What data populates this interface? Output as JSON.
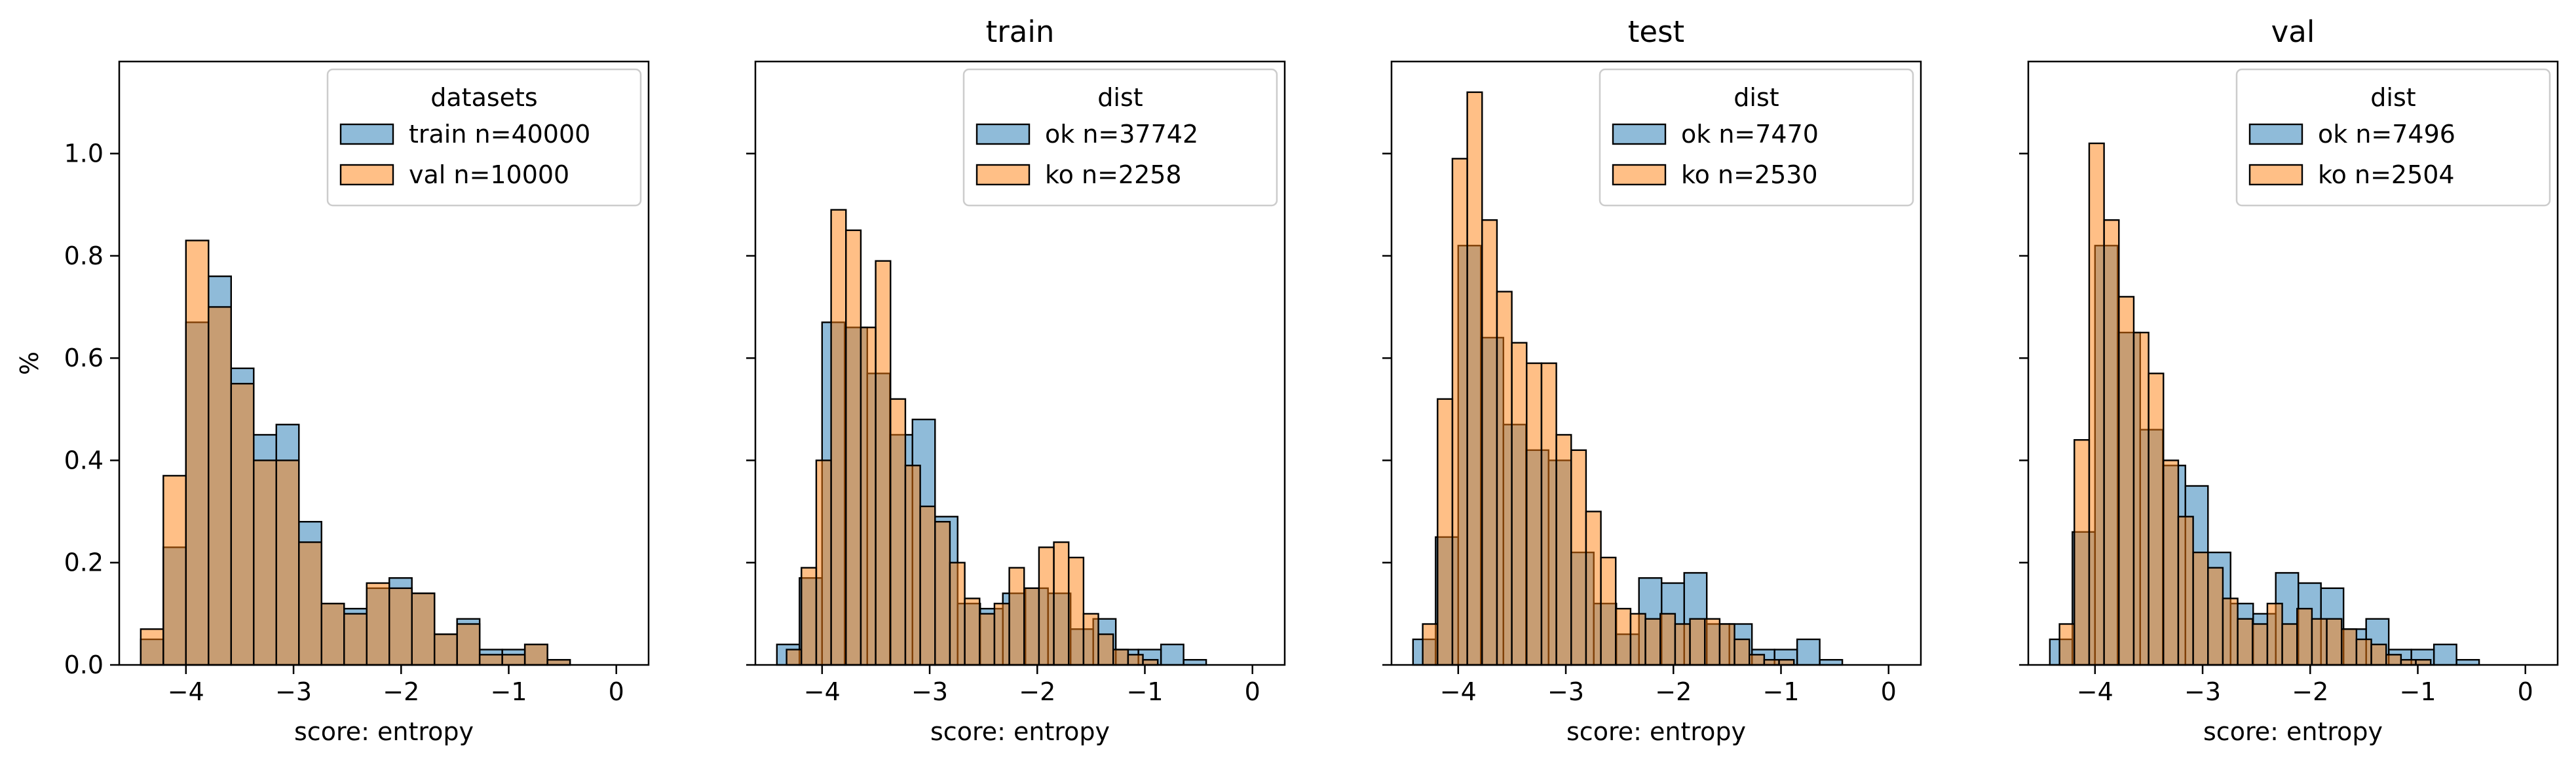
{
  "figure": {
    "shared_ylabel": "%",
    "xlabel": "score: entropy",
    "colors": {
      "blue": "#1f77b4",
      "orange": "#ff7f0e",
      "edge": "#000000"
    }
  },
  "chart_data": [
    {
      "type": "bar",
      "title": "",
      "xlabel": "score: entropy",
      "ylabel": "%",
      "xlim": [
        -4.62,
        0.3
      ],
      "ylim": [
        0,
        1.18
      ],
      "xticks": [
        -4,
        -3,
        -2,
        -1,
        0
      ],
      "yticks": [
        0.0,
        0.2,
        0.4,
        0.6,
        0.8,
        1.0
      ],
      "xtick_labels": [
        "−4",
        "−3",
        "−2",
        "−1",
        "0"
      ],
      "ytick_labels": [
        "0.0",
        "0.2",
        "0.4",
        "0.6",
        "0.8",
        "1.0"
      ],
      "grid": false,
      "legend": {
        "title": "datasets",
        "location": "upper right"
      },
      "series": [
        {
          "name": "train n=40000",
          "color": "#1f77b4",
          "bin_start": -4.42,
          "bin_width": 0.21,
          "values": [
            0.05,
            0.23,
            0.67,
            0.76,
            0.58,
            0.45,
            0.47,
            0.28,
            0.12,
            0.11,
            0.15,
            0.17,
            0.14,
            0.06,
            0.09,
            0.03,
            0.03,
            0.04,
            0.01
          ]
        },
        {
          "name": "val n=10000",
          "color": "#ff7f0e",
          "bin_start": -4.42,
          "bin_width": 0.21,
          "values": [
            0.07,
            0.37,
            0.83,
            0.7,
            0.55,
            0.4,
            0.4,
            0.24,
            0.12,
            0.1,
            0.16,
            0.15,
            0.14,
            0.06,
            0.08,
            0.02,
            0.02,
            0.04,
            0.01
          ]
        }
      ]
    },
    {
      "type": "bar",
      "title": "train",
      "xlabel": "score: entropy",
      "xlim": [
        -4.62,
        0.3
      ],
      "ylim": [
        0,
        1.18
      ],
      "xticks": [
        -4,
        -3,
        -2,
        -1,
        0
      ],
      "yticks": [
        0.0,
        0.2,
        0.4,
        0.6,
        0.8,
        1.0
      ],
      "xtick_labels": [
        "−4",
        "−3",
        "−2",
        "−1",
        "0"
      ],
      "grid": false,
      "legend": {
        "title": "dist",
        "location": "upper right"
      },
      "series": [
        {
          "name": "ok n=37742",
          "color": "#1f77b4",
          "bin_start": -4.42,
          "bin_width": 0.21,
          "values": [
            0.04,
            0.17,
            0.67,
            0.66,
            0.57,
            0.45,
            0.48,
            0.29,
            0.12,
            0.11,
            0.14,
            0.15,
            0.14,
            0.07,
            0.09,
            0.03,
            0.03,
            0.04,
            0.01
          ]
        },
        {
          "name": "ko n=2258",
          "color": "#ff7f0e",
          "bin_start": -4.33,
          "bin_width": 0.138,
          "values": [
            0.03,
            0.19,
            0.4,
            0.89,
            0.85,
            0.66,
            0.79,
            0.52,
            0.39,
            0.31,
            0.28,
            0.2,
            0.13,
            0.1,
            0.12,
            0.19,
            0.15,
            0.23,
            0.24,
            0.21,
            0.1,
            0.06,
            0.03,
            0.02,
            0.01
          ]
        }
      ]
    },
    {
      "type": "bar",
      "title": "test",
      "xlabel": "score: entropy",
      "xlim": [
        -4.62,
        0.3
      ],
      "ylim": [
        0,
        1.18
      ],
      "xticks": [
        -4,
        -3,
        -2,
        -1,
        0
      ],
      "yticks": [
        0.0,
        0.2,
        0.4,
        0.6,
        0.8,
        1.0
      ],
      "xtick_labels": [
        "−4",
        "−3",
        "−2",
        "−1",
        "0"
      ],
      "grid": false,
      "legend": {
        "title": "dist",
        "location": "upper right"
      },
      "series": [
        {
          "name": "ok n=7470",
          "color": "#1f77b4",
          "bin_start": -4.42,
          "bin_width": 0.21,
          "values": [
            0.05,
            0.25,
            0.82,
            0.64,
            0.47,
            0.42,
            0.4,
            0.22,
            0.12,
            0.06,
            0.17,
            0.16,
            0.18,
            0.08,
            0.08,
            0.03,
            0.03,
            0.05,
            0.01
          ]
        },
        {
          "name": "ko n=2530",
          "color": "#ff7f0e",
          "bin_start": -4.33,
          "bin_width": 0.138,
          "values": [
            0.08,
            0.52,
            0.99,
            1.12,
            0.87,
            0.73,
            0.63,
            0.59,
            0.59,
            0.45,
            0.42,
            0.3,
            0.21,
            0.11,
            0.1,
            0.09,
            0.1,
            0.08,
            0.09,
            0.09,
            0.08,
            0.05,
            0.02,
            0.01,
            0.01
          ]
        }
      ]
    },
    {
      "type": "bar",
      "title": "val",
      "xlabel": "score: entropy",
      "xlim": [
        -4.62,
        0.3
      ],
      "ylim": [
        0,
        1.18
      ],
      "xticks": [
        -4,
        -3,
        -2,
        -1,
        0
      ],
      "yticks": [
        0.0,
        0.2,
        0.4,
        0.6,
        0.8,
        1.0
      ],
      "xtick_labels": [
        "−4",
        "−3",
        "−2",
        "−1",
        "0"
      ],
      "grid": false,
      "legend": {
        "title": "dist",
        "location": "upper right"
      },
      "series": [
        {
          "name": "ok n=7496",
          "color": "#1f77b4",
          "bin_start": -4.42,
          "bin_width": 0.21,
          "values": [
            0.05,
            0.26,
            0.82,
            0.65,
            0.46,
            0.39,
            0.35,
            0.22,
            0.12,
            0.1,
            0.18,
            0.16,
            0.15,
            0.07,
            0.09,
            0.03,
            0.03,
            0.04,
            0.01
          ]
        },
        {
          "name": "ko n=2504",
          "color": "#ff7f0e",
          "bin_start": -4.33,
          "bin_width": 0.138,
          "values": [
            0.08,
            0.44,
            1.02,
            0.87,
            0.72,
            0.65,
            0.57,
            0.4,
            0.29,
            0.22,
            0.19,
            0.13,
            0.09,
            0.08,
            0.12,
            0.08,
            0.11,
            0.09,
            0.09,
            0.07,
            0.05,
            0.04,
            0.02,
            0.01,
            0.01
          ]
        }
      ]
    }
  ]
}
